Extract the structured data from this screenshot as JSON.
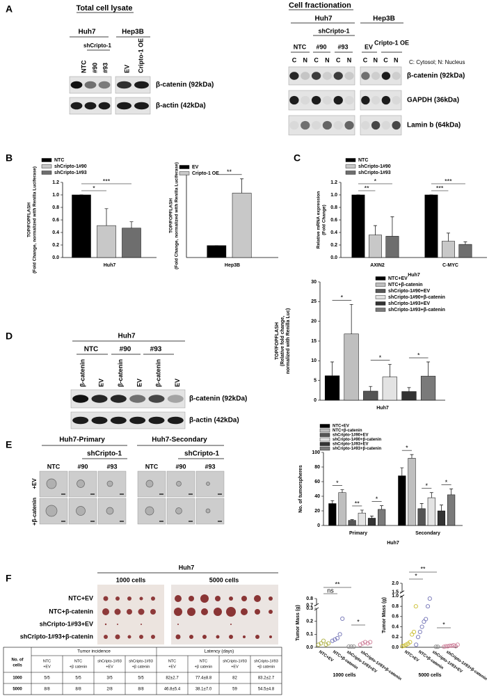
{
  "panel_labels": [
    "A",
    "B",
    "C",
    "D",
    "E",
    "F"
  ],
  "blot_total": {
    "title": "Total cell lysate",
    "groups": [
      "Huh7",
      "Hep3B"
    ],
    "subgroup": "shCripto-1",
    "lanes": [
      "NTC",
      "#90",
      "#93",
      "EV",
      "Cripto-1 OE"
    ],
    "bands": [
      "β-catenin (92kDa)",
      "β-actin (42kDa)"
    ]
  },
  "blot_fraction": {
    "title": "Cell fractionation",
    "groups": [
      "Huh7",
      "Hep3B"
    ],
    "subgroup": "shCripto-1",
    "lanes": [
      "NTC",
      "#90",
      "#93",
      "EV",
      "Cripto-1 OE"
    ],
    "fractions": [
      "C",
      "N",
      "C",
      "N",
      "C",
      "N",
      "C",
      "N",
      "C",
      "N"
    ],
    "legend": "C: Cytosol; N: Nucleus",
    "bands": [
      "β-catenin (92kDa)",
      "GAPDH (36kDa)",
      "Lamin b (64kDa)"
    ]
  },
  "blot_d": {
    "title": "Huh7",
    "lanes": [
      "NTC",
      "#90",
      "#93"
    ],
    "treatments": [
      "β-catenin",
      "EV",
      "β-catenin",
      "EV",
      "β-catenin",
      "EV"
    ],
    "bands": [
      "β-catenin (92kDa)",
      "β-actin (42kDa)"
    ]
  },
  "spheres": {
    "titles": [
      "Huh7-Primary",
      "Huh7-Secondary"
    ],
    "subgroup": "shCripto-1",
    "lanes": [
      "NTC",
      "#90",
      "#93"
    ],
    "rows": [
      "+EV",
      "+β-catenin"
    ]
  },
  "tumor_photo": {
    "title": "Huh7",
    "sizes": [
      "1000 cells",
      "5000 cells"
    ],
    "rows": [
      "NTC+EV",
      "NTC+β-catenin",
      "shCripto-1#93+EV",
      "shCripto-1#93+β-catenin"
    ]
  },
  "table": {
    "header_corner": [
      "No. of",
      "cells"
    ],
    "header_groups": [
      "Tumor incidence",
      "Latency (days)"
    ],
    "header_sub": [
      [
        "NTC",
        "+EV"
      ],
      [
        "NTC",
        "+β catenin"
      ],
      [
        "shCripto-1#93",
        "+EV"
      ],
      [
        "shCripto-1#93",
        "+β catenin"
      ],
      [
        "NTC",
        "+EV"
      ],
      [
        "NTC",
        "+β catenin"
      ],
      [
        "shCripto-1#93",
        "+EV"
      ],
      [
        "shCripto-1#93",
        "+β catenin"
      ]
    ],
    "rows": [
      [
        "1000",
        "5/5",
        "5/5",
        "3/5",
        "5/5",
        "82±2.7",
        "77.4±8.8",
        "82",
        "83.2±2.7"
      ],
      [
        "5000",
        "8/8",
        "8/8",
        "2/8",
        "8/8",
        "46.8±5.4",
        "38.1±7.0",
        "59",
        "54.5±4.8"
      ]
    ]
  },
  "chart_data": [
    {
      "type": "bar",
      "ylabel": [
        "TOP/FOPFLASH",
        "(Fold Change, normalized with Renilla Luciferase)"
      ],
      "categories": [
        "Huh7"
      ],
      "series": [
        {
          "name": "NTC",
          "color": "#000000",
          "values": [
            1.0
          ],
          "errors": [
            0
          ]
        },
        {
          "name": "shCripto-1#90",
          "color": "#c8c8c8",
          "values": [
            0.51
          ],
          "errors": [
            0.27
          ]
        },
        {
          "name": "shCripto-1#93",
          "color": "#6e6e6e",
          "values": [
            0.47
          ],
          "errors": [
            0.1
          ]
        }
      ],
      "ylim": [
        0,
        1.2
      ],
      "yticks": [
        {
          "value": 0,
          "label": "0.0"
        },
        0.2,
        0.4,
        0.6,
        0.8,
        {
          "value": 1,
          "label": "1.0"
        },
        1.2
      ],
      "annotations": [
        "*",
        "***"
      ]
    },
    {
      "type": "bar",
      "ylabel": [
        "TOP/FOPFLASH",
        "(Fold Change, normalized with Renilla Luciferase)"
      ],
      "categories": [
        "Hep3B"
      ],
      "series": [
        {
          "name": "EV",
          "color": "#000000",
          "values": [
            1.0
          ],
          "errors": [
            0
          ]
        },
        {
          "name": "Cripto-1 OE",
          "color": "#c8c8c8",
          "values": [
            5.4
          ],
          "errors": [
            1.2
          ]
        }
      ],
      "ylim": [
        0,
        7
      ],
      "annotations": [
        "**"
      ]
    },
    {
      "type": "bar",
      "ylabel": [
        "Relative mRNA expression",
        "(Fold Change)"
      ],
      "xlabel": "Huh7",
      "categories": [
        "AXIN2",
        "C-MYC"
      ],
      "series": [
        {
          "name": "NTC",
          "color": "#000000",
          "values": [
            1.0,
            1.0
          ],
          "errors": [
            0,
            0
          ]
        },
        {
          "name": "shCripto-1#90",
          "color": "#c8c8c8",
          "values": [
            0.36,
            0.26
          ],
          "errors": [
            0.15,
            0.13
          ]
        },
        {
          "name": "shCripto-1#93",
          "color": "#6e6e6e",
          "values": [
            0.34,
            0.21
          ],
          "errors": [
            0.31,
            0.04
          ]
        }
      ],
      "ylim": [
        0,
        1.2
      ],
      "yticks": [
        {
          "value": 0,
          "label": "0.0"
        },
        0.2,
        0.4,
        0.6,
        0.8,
        {
          "value": 1,
          "label": "1.0"
        },
        1.2
      ],
      "annotations": [
        "**",
        "*",
        "***",
        "***"
      ]
    },
    {
      "type": "bar",
      "ylabel": [
        "TOP/FOPFLASH",
        "(Relative fold change,",
        "normalized with Renilla Luc)"
      ],
      "categories": [
        "Huh7"
      ],
      "series": [
        {
          "name": "NTC+EV",
          "color": "#000000",
          "values": [
            6.2
          ],
          "errors": [
            3.5
          ]
        },
        {
          "name": "NTC+β-catenin",
          "color": "#bfbfbf",
          "values": [
            16.8
          ],
          "errors": [
            7.5
          ]
        },
        {
          "name": "shCripto-1#90+EV",
          "color": "#555555",
          "values": [
            2.3
          ],
          "errors": [
            1.2
          ]
        },
        {
          "name": "shCripto-1#90+β-catenin",
          "color": "#e3e3e3",
          "values": [
            5.9
          ],
          "errors": [
            3.2
          ]
        },
        {
          "name": "shCripto-1#93+EV",
          "color": "#333333",
          "values": [
            2.2
          ],
          "errors": [
            1.0
          ]
        },
        {
          "name": "shCripto-1#93+β-catenin",
          "color": "#7a7a7a",
          "values": [
            6.1
          ],
          "errors": [
            3.6
          ]
        }
      ],
      "ylim": [
        0,
        30
      ],
      "yticks": [
        0,
        5,
        10,
        15,
        20,
        25,
        30
      ],
      "annotations": [
        "*",
        "*",
        "*"
      ]
    },
    {
      "type": "bar",
      "ylabel": [
        "No. of tumorspheres"
      ],
      "xlabel": "Huh7",
      "categories": [
        "Primary",
        "Secondary"
      ],
      "series": [
        {
          "name": "NTC+EV",
          "color": "#000000",
          "values": [
            30,
            68
          ],
          "errors": [
            4,
            11
          ]
        },
        {
          "name": "NTC+β-catenin",
          "color": "#bfbfbf",
          "values": [
            45,
            92
          ],
          "errors": [
            4,
            5
          ]
        },
        {
          "name": "shCripto-1#90+EV",
          "color": "#555555",
          "values": [
            7,
            23
          ],
          "errors": [
            1,
            7
          ]
        },
        {
          "name": "shCripto-1#90+β-catenin",
          "color": "#e3e3e3",
          "values": [
            17,
            38
          ],
          "errors": [
            4,
            7
          ]
        },
        {
          "name": "shCripto-1#93+EV",
          "color": "#333333",
          "values": [
            10,
            20
          ],
          "errors": [
            3,
            8
          ]
        },
        {
          "name": "shCripto-1#93+β-catenin",
          "color": "#7a7a7a",
          "values": [
            22,
            42
          ],
          "errors": [
            5,
            8
          ]
        }
      ],
      "ylim": [
        0,
        100
      ],
      "yticks": [
        0,
        20,
        40,
        60,
        80,
        100
      ],
      "annotations": [
        "*",
        "**",
        "*",
        "*",
        "*",
        "*"
      ]
    },
    {
      "type": "scatter",
      "ylabel": [
        "Tumor Mass (g)"
      ],
      "xlabel": "1000 cells",
      "categories": [
        "NTC+EV",
        "NTC+β-catenin",
        "shCripto-1#93+EV",
        "shCripto-1#93+β-catenin"
      ],
      "colors": [
        "#a9ac3a",
        "#6f70b4",
        "#8c8c8c",
        "#cf7f9a"
      ],
      "values": [
        [
          0.02,
          0.03,
          0.05,
          0.02,
          0.03
        ],
        [
          0.05,
          0.06,
          0.07,
          0.1,
          0.22
        ],
        [
          0.005,
          0.005,
          0.005
        ],
        [
          0.02,
          0.03,
          0.04,
          0.03,
          0.04
        ]
      ],
      "ylim": [
        0,
        0.8
      ],
      "axis_break": [
        0.3,
        0.7
      ],
      "yticks": [
        {
          "value": 0,
          "label": "0.0"
        },
        0.1,
        0.2,
        0.3,
        0.7,
        0.8
      ],
      "annotations": [
        "ns",
        "**",
        "*"
      ]
    },
    {
      "type": "scatter",
      "ylabel": [
        "Tumor Mass (g)"
      ],
      "xlabel": "5000 cells",
      "categories": [
        "NTC+EV",
        "NTC+β-catenin",
        "shCripto-1#93+EV",
        "shCripto-1#93+β-catenin"
      ],
      "colors": [
        "#c9bd2c",
        "#6f70b4",
        "#8c8c8c",
        "#cf7f9a"
      ],
      "values": [
        [
          0.02,
          0.03,
          0.05,
          0.07,
          0.1,
          0.25,
          0.3,
          0.8
        ],
        [
          0.05,
          0.2,
          0.3,
          0.4,
          0.5,
          0.55,
          0.8,
          0.95
        ],
        [
          0.01,
          0.01
        ],
        [
          0.01,
          0.02,
          0.02,
          0.03,
          0.03,
          0.04,
          0.02,
          0.05
        ]
      ],
      "ylim": [
        0,
        2
      ],
      "axis_break": [
        1,
        1.5
      ],
      "yticks": [
        {
          "value": 0,
          "label": "0.0"
        },
        0.2,
        0.4,
        0.6,
        0.8,
        {
          "value": 1,
          "label": "1.0"
        },
        1.5,
        {
          "value": 2,
          "label": "2.0"
        }
      ],
      "annotations": [
        "**",
        "*",
        "*"
      ]
    }
  ]
}
